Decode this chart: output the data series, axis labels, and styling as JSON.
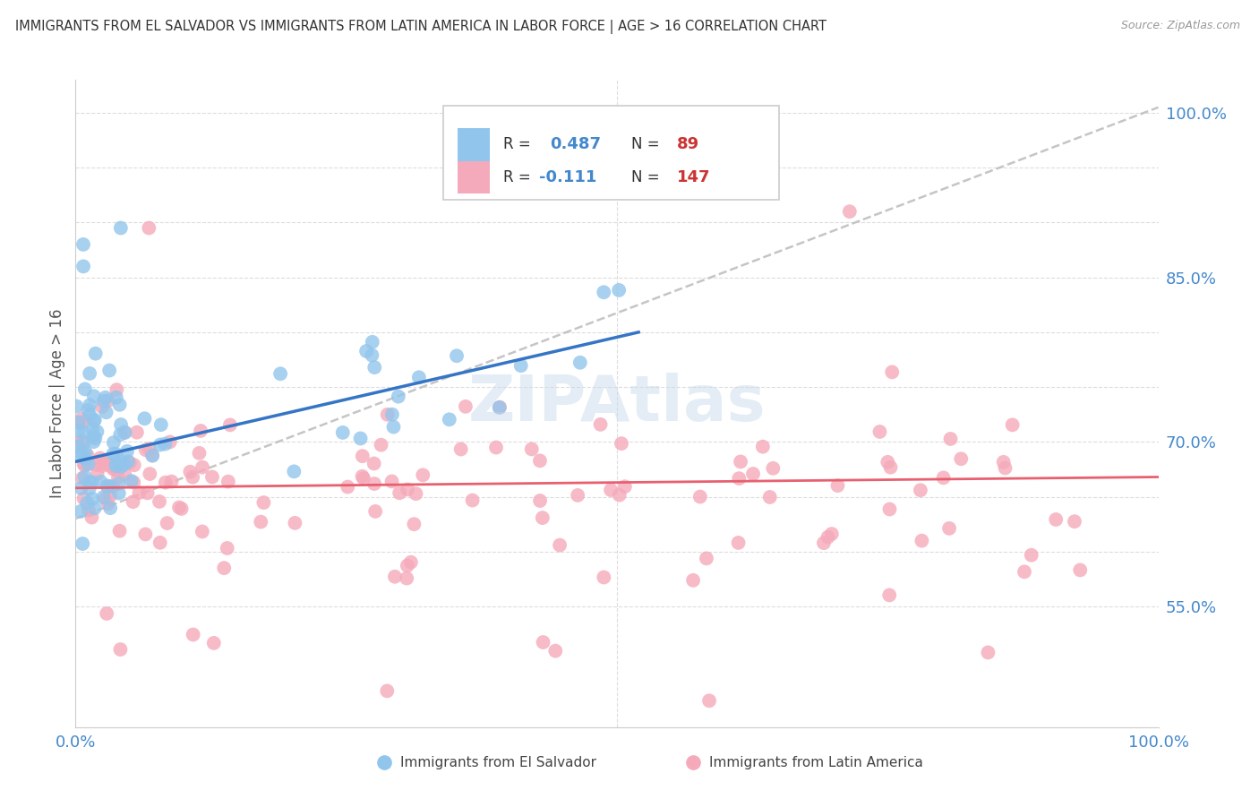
{
  "title": "IMMIGRANTS FROM EL SALVADOR VS IMMIGRANTS FROM LATIN AMERICA IN LABOR FORCE | AGE > 16 CORRELATION CHART",
  "source": "Source: ZipAtlas.com",
  "ylabel": "In Labor Force | Age > 16",
  "xlim": [
    0.0,
    1.0
  ],
  "ylim": [
    0.44,
    1.03
  ],
  "el_salvador_R": 0.487,
  "el_salvador_N": 89,
  "latin_america_R": -0.111,
  "latin_america_N": 147,
  "blue_color": "#92C5EC",
  "pink_color": "#F5AABB",
  "blue_line_color": "#3575C5",
  "pink_line_color": "#E86070",
  "dashed_line_color": "#BBBBBB",
  "legend_label_blue": "Immigrants from El Salvador",
  "legend_label_pink": "Immigrants from Latin America",
  "watermark": "ZIPAtlas",
  "background_color": "#FFFFFF",
  "grid_color": "#DDDDDD",
  "title_color": "#333333",
  "axis_label_color": "#555555",
  "legend_R_color": "#4488CC",
  "legend_N_color": "#CC3333",
  "ytick_vals": [
    0.55,
    0.7,
    0.85,
    1.0
  ],
  "ytick_labels": [
    "55.0%",
    "70.0%",
    "85.0%",
    "100.0%"
  ]
}
